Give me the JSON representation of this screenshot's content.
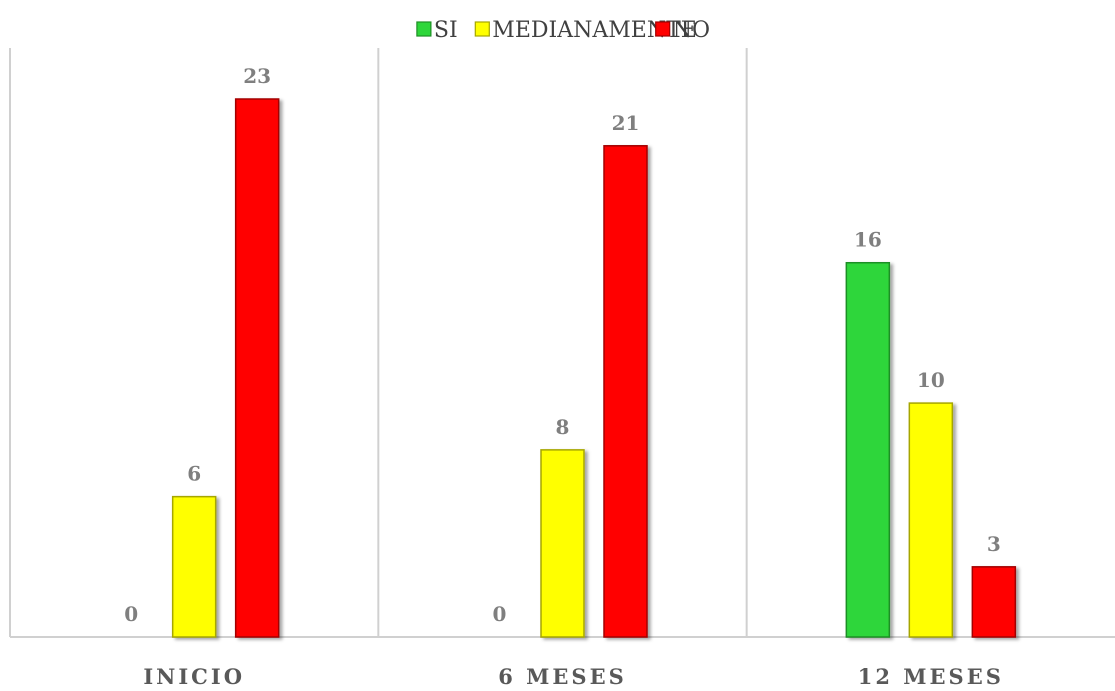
{
  "chart_data": {
    "type": "bar",
    "categories": [
      "INICIO",
      "6 MESES",
      "12 MESES"
    ],
    "series": [
      {
        "name": "SI",
        "color": "#2ed63a",
        "border": "#1e8f25",
        "values": [
          0,
          0,
          16
        ]
      },
      {
        "name": "MEDIANAMENTE",
        "color": "#ffff00",
        "border": "#a6a600",
        "values": [
          6,
          8,
          10
        ]
      },
      {
        "name": "NO",
        "color": "#ff0000",
        "border": "#a30000",
        "values": [
          23,
          21,
          3
        ]
      }
    ],
    "ylim": [
      0,
      23
    ],
    "legend_position": "top-center",
    "grid": "vertical category separators",
    "data_labels": true
  }
}
